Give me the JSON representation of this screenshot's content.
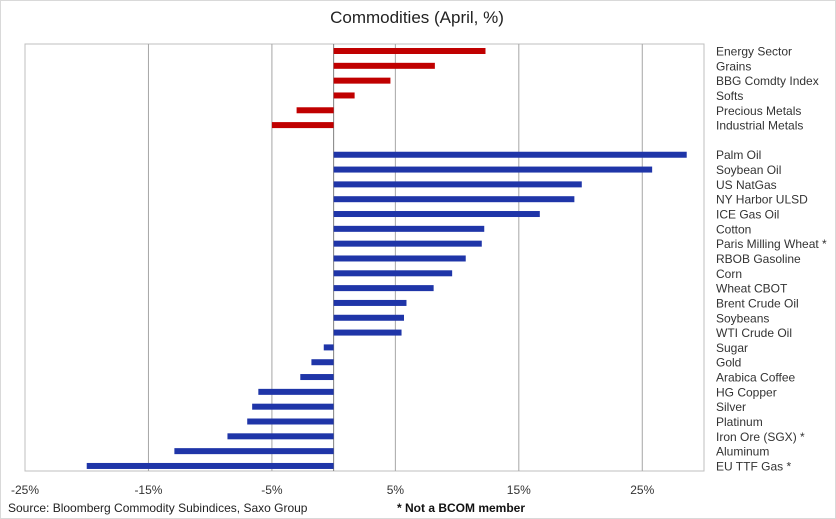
{
  "chart_data": {
    "type": "bar",
    "orientation": "horizontal",
    "title": "Commodities (April, %)",
    "xlabel": "",
    "ylabel": "",
    "xlim": [
      -25,
      30
    ],
    "x_ticks": [
      -25,
      -15,
      -5,
      5,
      15,
      25
    ],
    "x_tick_labels": [
      "-25%",
      "-15%",
      "-5%",
      "5%",
      "15%",
      "25%"
    ],
    "grid": "vertical",
    "source": "Source: Bloomberg Commodity Subindices, Saxo Group",
    "note": "* Not a BCOM member",
    "colors": {
      "sector": "#c00000",
      "commodity": "#1f35a8"
    },
    "series": [
      {
        "group": "sector",
        "categories": [
          "Energy Sector",
          "Grains",
          "BBG Comdty Index",
          "Softs",
          "Precious Metals",
          "Industrial Metals"
        ],
        "values": [
          12.3,
          8.2,
          4.6,
          1.7,
          -3.0,
          -5.0
        ]
      },
      {
        "group": "commodity",
        "categories": [
          "Palm Oil",
          "Soybean Oil",
          "US NatGas",
          "NY Harbor ULSD",
          "ICE Gas Oil",
          "Cotton",
          "Paris Milling Wheat *",
          "RBOB Gasoline",
          "Corn",
          "Wheat CBOT",
          "Brent Crude Oil",
          "Soybeans",
          "WTI Crude Oil",
          "Sugar",
          "Gold",
          "Arabica Coffee",
          "HG Copper",
          "Silver",
          "Platinum",
          "Iron Ore (SGX) *",
          "Aluminum",
          "EU TTF Gas *"
        ],
        "values": [
          28.6,
          25.8,
          20.1,
          19.5,
          16.7,
          12.2,
          12.0,
          10.7,
          9.6,
          8.1,
          5.9,
          5.7,
          5.5,
          -0.8,
          -1.8,
          -2.7,
          -6.1,
          -6.6,
          -7.0,
          -8.6,
          -12.9,
          -20.0
        ]
      }
    ]
  }
}
